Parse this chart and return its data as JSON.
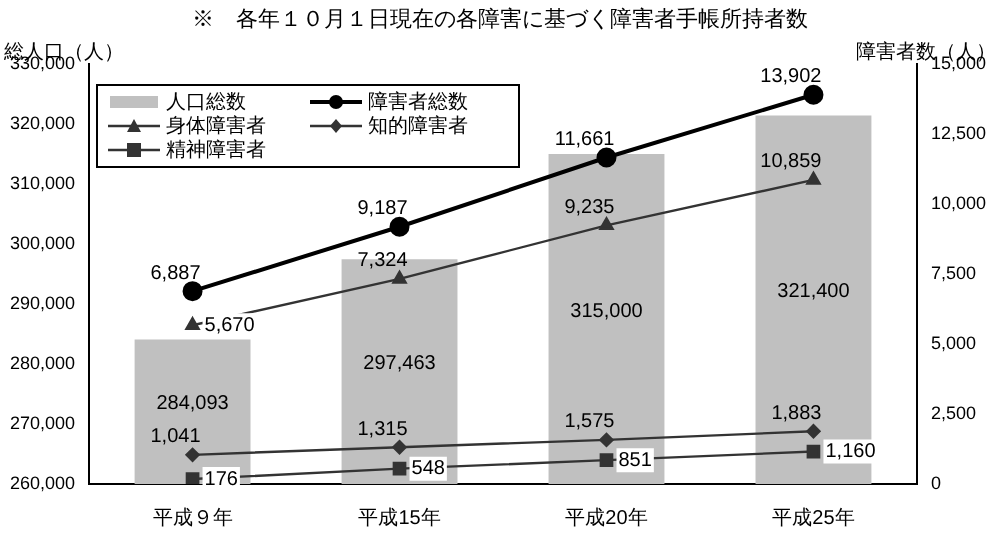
{
  "chart_data": {
    "type": "bar",
    "title": "※　各年１０月１日現在の各障害に基づく障害者手帳所持者数",
    "ylabel": "総人口（人）",
    "y2label": "障害者数（人）",
    "categories": [
      "平成９年",
      "平成15年",
      "平成20年",
      "平成25年"
    ],
    "series": [
      {
        "name": "人口総数",
        "type": "bar",
        "color": "#c0c0c0",
        "values": [
          284093,
          297463,
          315000,
          321400
        ],
        "value_labels": [
          "284,093",
          "297,463",
          "315,000",
          "321,400"
        ]
      },
      {
        "name": "障害者総数",
        "type": "line",
        "axis": "y2",
        "marker": "circle",
        "color": "#000000",
        "values": [
          6887,
          9187,
          11661,
          13902
        ],
        "value_labels": [
          "6,887",
          "9,187",
          "11,661",
          "13,902"
        ]
      },
      {
        "name": "身体障害者",
        "type": "line",
        "axis": "y2",
        "marker": "triangle",
        "color": "#333333",
        "values": [
          5670,
          7324,
          9235,
          10859
        ],
        "value_labels": [
          "5,670",
          "7,324",
          "9,235",
          "10,859"
        ]
      },
      {
        "name": "知的障害者",
        "type": "line",
        "axis": "y2",
        "marker": "diamond",
        "color": "#333333",
        "values": [
          1041,
          1315,
          1575,
          1883
        ],
        "value_labels": [
          "1,041",
          "1,315",
          "1,575",
          "1,883"
        ]
      },
      {
        "name": "精神障害者",
        "type": "line",
        "axis": "y2",
        "marker": "square",
        "color": "#333333",
        "values": [
          176,
          548,
          851,
          1160
        ],
        "value_labels": [
          "176",
          "548",
          "851",
          "1,160"
        ]
      }
    ],
    "ylim": [
      260000,
      330000
    ],
    "yticks": [
      {
        "value": 260000,
        "label": "260,000"
      },
      {
        "value": 270000,
        "label": "270,000"
      },
      {
        "value": 280000,
        "label": "280,000"
      },
      {
        "value": 290000,
        "label": "290,000"
      },
      {
        "value": 300000,
        "label": "300,000"
      },
      {
        "value": 310000,
        "label": "310,000"
      },
      {
        "value": 320000,
        "label": "320,000"
      },
      {
        "value": 330000,
        "label": "330,000"
      }
    ],
    "y2lim": [
      0,
      15000
    ],
    "y2ticks": [
      0,
      {
        "value": 2500,
        "label": "2,500"
      },
      {
        "value": 5000,
        "label": "5,000"
      },
      {
        "value": 7500,
        "label": "7,500"
      },
      {
        "value": 10000,
        "label": "10,000"
      },
      {
        "value": 12500,
        "label": "12,500"
      },
      {
        "value": 15000,
        "label": "15,000"
      }
    ],
    "legend": "top left",
    "grid": false
  }
}
